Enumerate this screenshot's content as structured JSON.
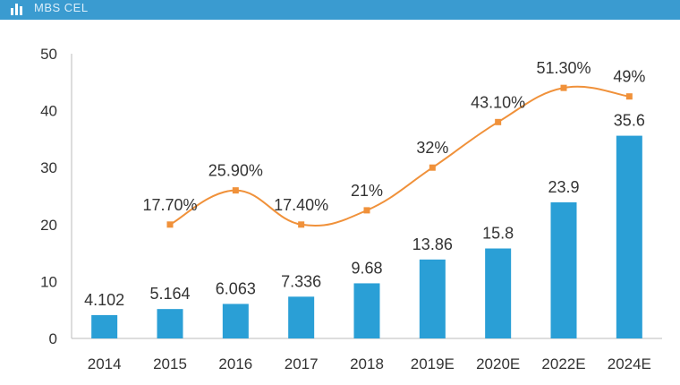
{
  "header": {
    "text": "MBS CEL",
    "band_color": "#3a9bd0"
  },
  "chart_data": {
    "type": "bar",
    "categories": [
      "2014",
      "2015",
      "2016",
      "2017",
      "2018",
      "2019E",
      "2020E",
      "2022E",
      "2024E"
    ],
    "ylim": [
      0,
      50
    ],
    "yticks": [
      0,
      10,
      20,
      30,
      40,
      50
    ],
    "grid": false,
    "series": [
      {
        "kind": "bar",
        "values": [
          4.102,
          5.164,
          6.063,
          7.336,
          9.68,
          13.86,
          15.8,
          23.9,
          35.6
        ],
        "labels": [
          "4.102",
          "5.164",
          "6.063",
          "7.336",
          "9.68",
          "13.86",
          "15.8",
          "23.9",
          "35.6"
        ],
        "color": "#2a9fd6"
      },
      {
        "kind": "line",
        "values": [
          null,
          17.7,
          25.9,
          17.4,
          21,
          32,
          43.1,
          51.3,
          49
        ],
        "labels": [
          "",
          "17.70%",
          "25.90%",
          "17.40%",
          "21%",
          "32%",
          "43.10%",
          "51.30%",
          "49%"
        ],
        "color": "#f0913a",
        "plotted_on_primary_axis_approx": [
          null,
          20,
          26,
          20,
          22.5,
          30,
          38,
          44,
          42.5
        ]
      }
    ]
  }
}
